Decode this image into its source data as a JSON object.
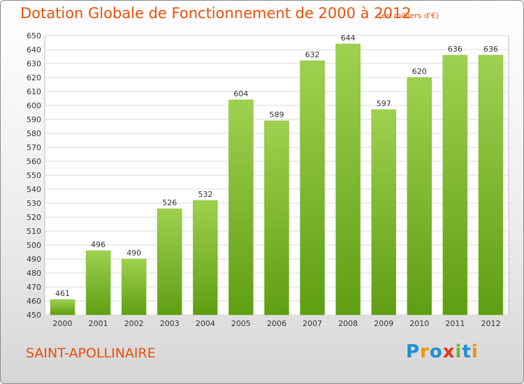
{
  "title": "Dotation Globale de Fonctionnement de 2000 à 2012",
  "subtitle": "(en milliers d'€)",
  "commune": "SAINT-APOLLINAIRE",
  "logo": {
    "text": "Proxiti",
    "letters": [
      {
        "ch": "P",
        "color": "#1e8fd6"
      },
      {
        "ch": "r",
        "color": "#f39200"
      },
      {
        "ch": "o",
        "color": "#1e8fd6"
      },
      {
        "ch": "x",
        "color": "#e2341d"
      },
      {
        "ch": "i",
        "color": "#6fb32b"
      },
      {
        "ch": "t",
        "color": "#1e8fd6"
      },
      {
        "ch": "i",
        "color": "#f39200"
      }
    ]
  },
  "colors": {
    "accent": "#e8500a",
    "bar_top": "#9ed14f",
    "bar_bottom": "#5f9e12",
    "grid": "#d9d9d9",
    "axis_text": "#333333"
  },
  "chart_data": {
    "type": "bar",
    "categories": [
      "2000",
      "2001",
      "2002",
      "2003",
      "2004",
      "2005",
      "2006",
      "2007",
      "2008",
      "2009",
      "2010",
      "2011",
      "2012"
    ],
    "values": [
      461,
      496,
      490,
      526,
      532,
      604,
      589,
      632,
      644,
      597,
      620,
      636,
      636
    ],
    "ylim": [
      450,
      650
    ],
    "ytick_step": 10,
    "grid": true,
    "data_labels": true
  }
}
